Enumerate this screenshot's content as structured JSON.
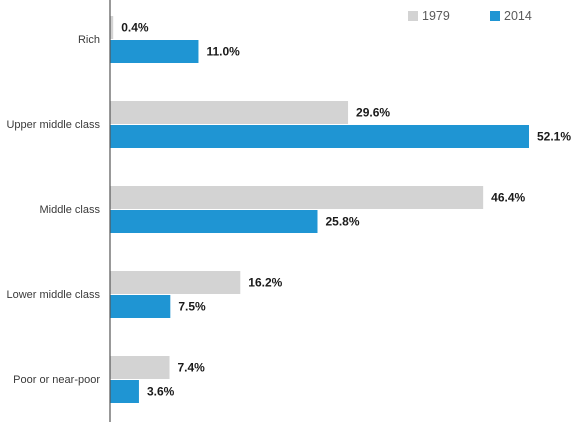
{
  "chart_data": {
    "type": "bar",
    "orientation": "horizontal",
    "categories": [
      "Rich",
      "Upper middle class",
      "Middle class",
      "Lower middle class",
      "Poor or near-poor"
    ],
    "series": [
      {
        "name": "1979",
        "values": [
          0.4,
          29.6,
          46.4,
          16.2,
          7.4
        ],
        "labels": [
          "0.4%",
          "29.6%",
          "46.4%",
          "16.2%",
          "7.4%"
        ],
        "color": "#d3d3d3"
      },
      {
        "name": "2014",
        "values": [
          11.0,
          52.1,
          25.8,
          7.5,
          3.6
        ],
        "labels": [
          "11.0%",
          "52.1%",
          "25.8%",
          "7.5%",
          "3.6%"
        ],
        "color": "#1f95d3"
      }
    ],
    "xlim": [
      0,
      52.1
    ],
    "grid": false,
    "legend": "top-right",
    "title": "",
    "xlabel": "",
    "ylabel": ""
  }
}
